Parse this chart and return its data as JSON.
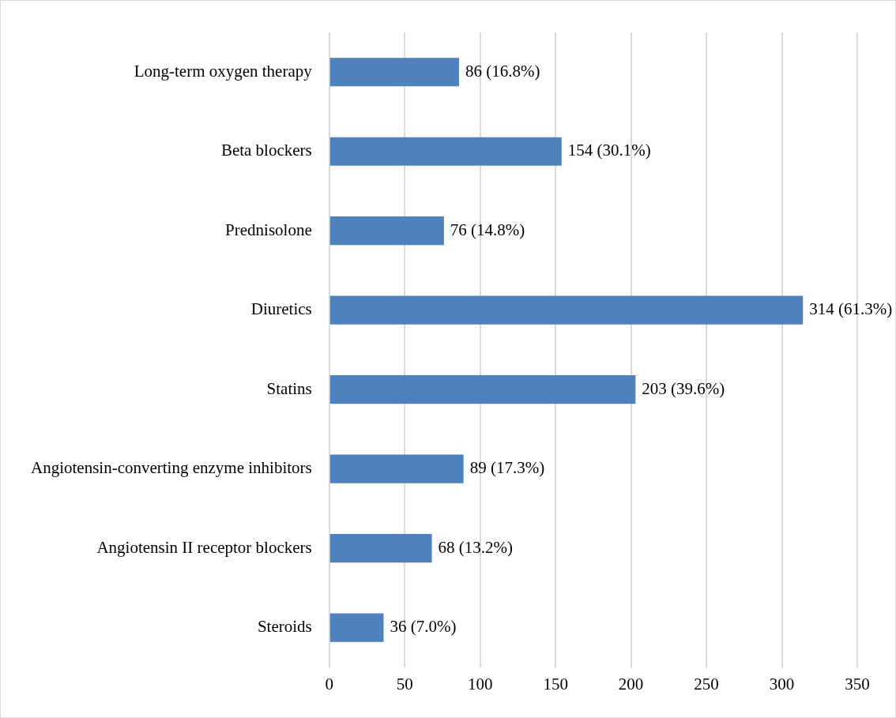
{
  "chart_data": {
    "type": "bar",
    "orientation": "horizontal",
    "categories": [
      "Long-term oxygen therapy",
      "Beta blockers",
      "Prednisolone",
      "Diuretics",
      "Statins",
      "Angiotensin-converting enzyme inhibitors",
      "Angiotensin II receptor blockers",
      "Steroids"
    ],
    "values": [
      86,
      154,
      76,
      314,
      203,
      89,
      68,
      36
    ],
    "value_labels": [
      "86 (16.8%)",
      "154 (30.1%)",
      "76 (14.8%)",
      "314 (61.3%)",
      "203 (39.6%)",
      "89 (17.3%)",
      "68 (13.2%)",
      "36 (7.0%)"
    ],
    "color": "#4f81bd",
    "xlim": [
      0,
      350
    ],
    "xticks": [
      0,
      50,
      100,
      150,
      200,
      250,
      300,
      350
    ],
    "grid": "x",
    "legend": false
  }
}
